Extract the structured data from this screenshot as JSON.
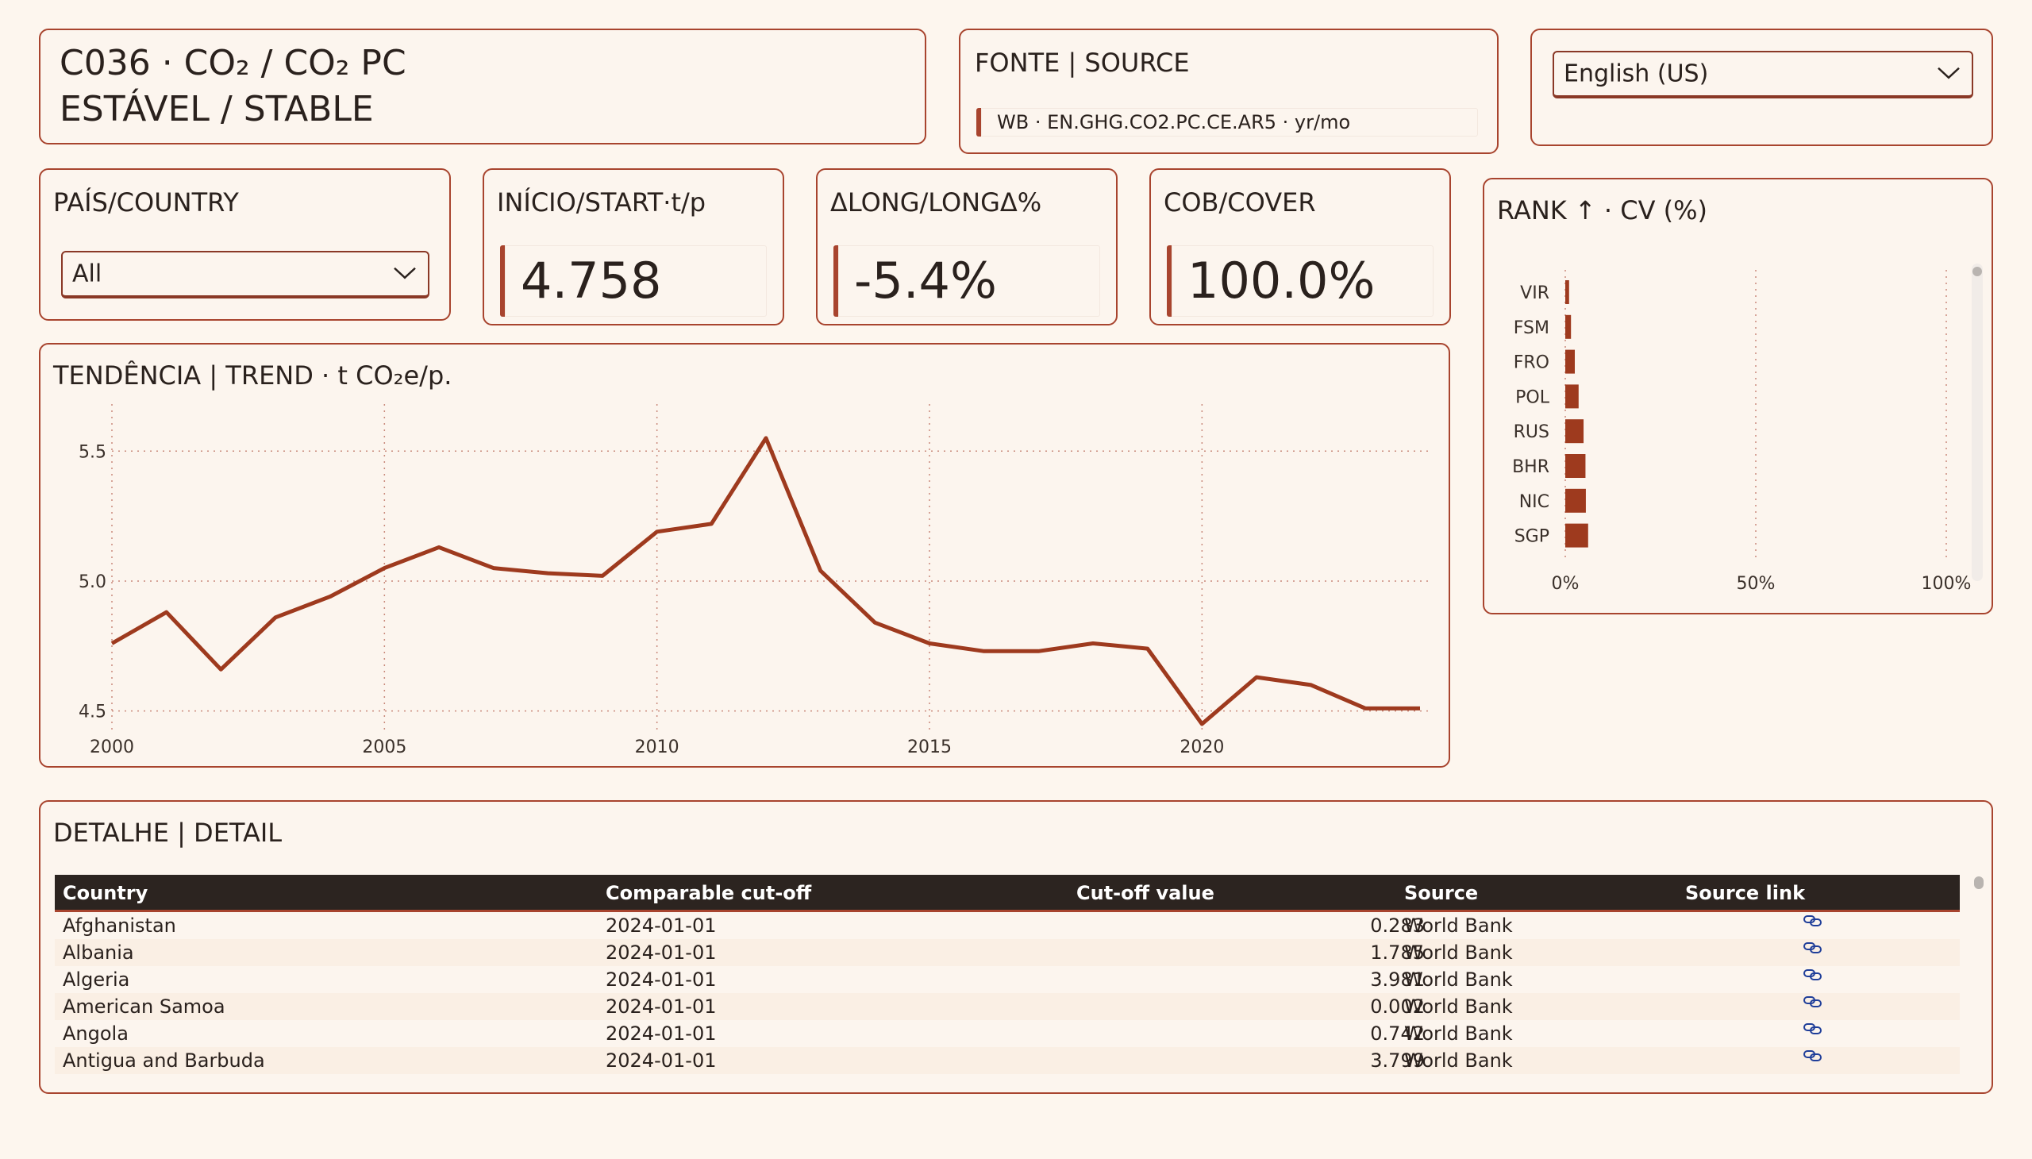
{
  "header": {
    "title_line1": "C036 · CO₂ / CO₂ PC",
    "title_line2": "ESTÁVEL / STABLE"
  },
  "source": {
    "title": "FONTE | SOURCE",
    "value": "WB · EN.GHG.CO2.PC.CE.AR5 · yr/mo"
  },
  "language": {
    "selected": "English (US)"
  },
  "country_filter": {
    "title": "PAÍS/COUNTRY",
    "selected": "All"
  },
  "kpis": [
    {
      "title": "INÍCIO/START·t/p",
      "value": "4.758"
    },
    {
      "title": "ΔLONG/LONGΔ%",
      "value": "-5.4%"
    },
    {
      "title": "COB/COVER",
      "value": "100.0%"
    }
  ],
  "colors": {
    "accent": "#A8442E",
    "line": "#9E3A1E",
    "background": "#FDF6EE",
    "header_dark": "#2C2420",
    "link": "#1F3E99"
  },
  "chart_data": [
    {
      "type": "line",
      "title": "TENDÊNCIA | TREND · t CO₂e/p.",
      "x": [
        2000,
        2001,
        2002,
        2003,
        2004,
        2005,
        2006,
        2007,
        2008,
        2009,
        2010,
        2011,
        2012,
        2013,
        2014,
        2015,
        2016,
        2017,
        2018,
        2019,
        2020,
        2021,
        2022,
        2023,
        2024
      ],
      "series": [
        {
          "values": [
            4.76,
            4.88,
            4.66,
            4.86,
            4.94,
            5.05,
            5.13,
            5.05,
            5.03,
            5.02,
            5.19,
            5.22,
            5.55,
            5.04,
            4.84,
            4.76,
            4.73,
            4.73,
            4.76,
            4.74,
            4.45,
            4.63,
            4.6,
            4.51,
            4.51
          ]
        }
      ],
      "xticks": [
        "2000",
        "2005",
        "2010",
        "2015",
        "2020"
      ],
      "yticks": [
        "4.5",
        "5.0",
        "5.5"
      ],
      "ylim": [
        4.45,
        5.62
      ],
      "xlim": [
        2000,
        2024
      ],
      "grid": true
    },
    {
      "type": "bar",
      "orientation": "horizontal",
      "title": "RANK ↑ · CV (%)",
      "categories": [
        "VIR",
        "FSM",
        "FRO",
        "POL",
        "RUS",
        "BHR",
        "NIC",
        "SGP"
      ],
      "values": [
        1.0,
        1.5,
        2.5,
        3.5,
        4.8,
        5.3,
        5.4,
        6.0
      ],
      "xticks": [
        "0%",
        "50%",
        "100%"
      ],
      "xlim": [
        0,
        100
      ],
      "grid": true
    }
  ],
  "detail": {
    "title": "DETALHE | DETAIL",
    "columns": [
      "Country",
      "Comparable cut-off",
      "Cut-off value",
      "Source",
      "Source link"
    ],
    "rows": [
      {
        "country": "Afghanistan",
        "cutoff": "2024-01-01",
        "value": "0.283",
        "source": "World Bank"
      },
      {
        "country": "Albania",
        "cutoff": "2024-01-01",
        "value": "1.785",
        "source": "World Bank"
      },
      {
        "country": "Algeria",
        "cutoff": "2024-01-01",
        "value": "3.981",
        "source": "World Bank"
      },
      {
        "country": "American Samoa",
        "cutoff": "2024-01-01",
        "value": "0.002",
        "source": "World Bank"
      },
      {
        "country": "Angola",
        "cutoff": "2024-01-01",
        "value": "0.742",
        "source": "World Bank"
      },
      {
        "country": "Antigua and Barbuda",
        "cutoff": "2024-01-01",
        "value": "3.799",
        "source": "World Bank"
      }
    ]
  }
}
